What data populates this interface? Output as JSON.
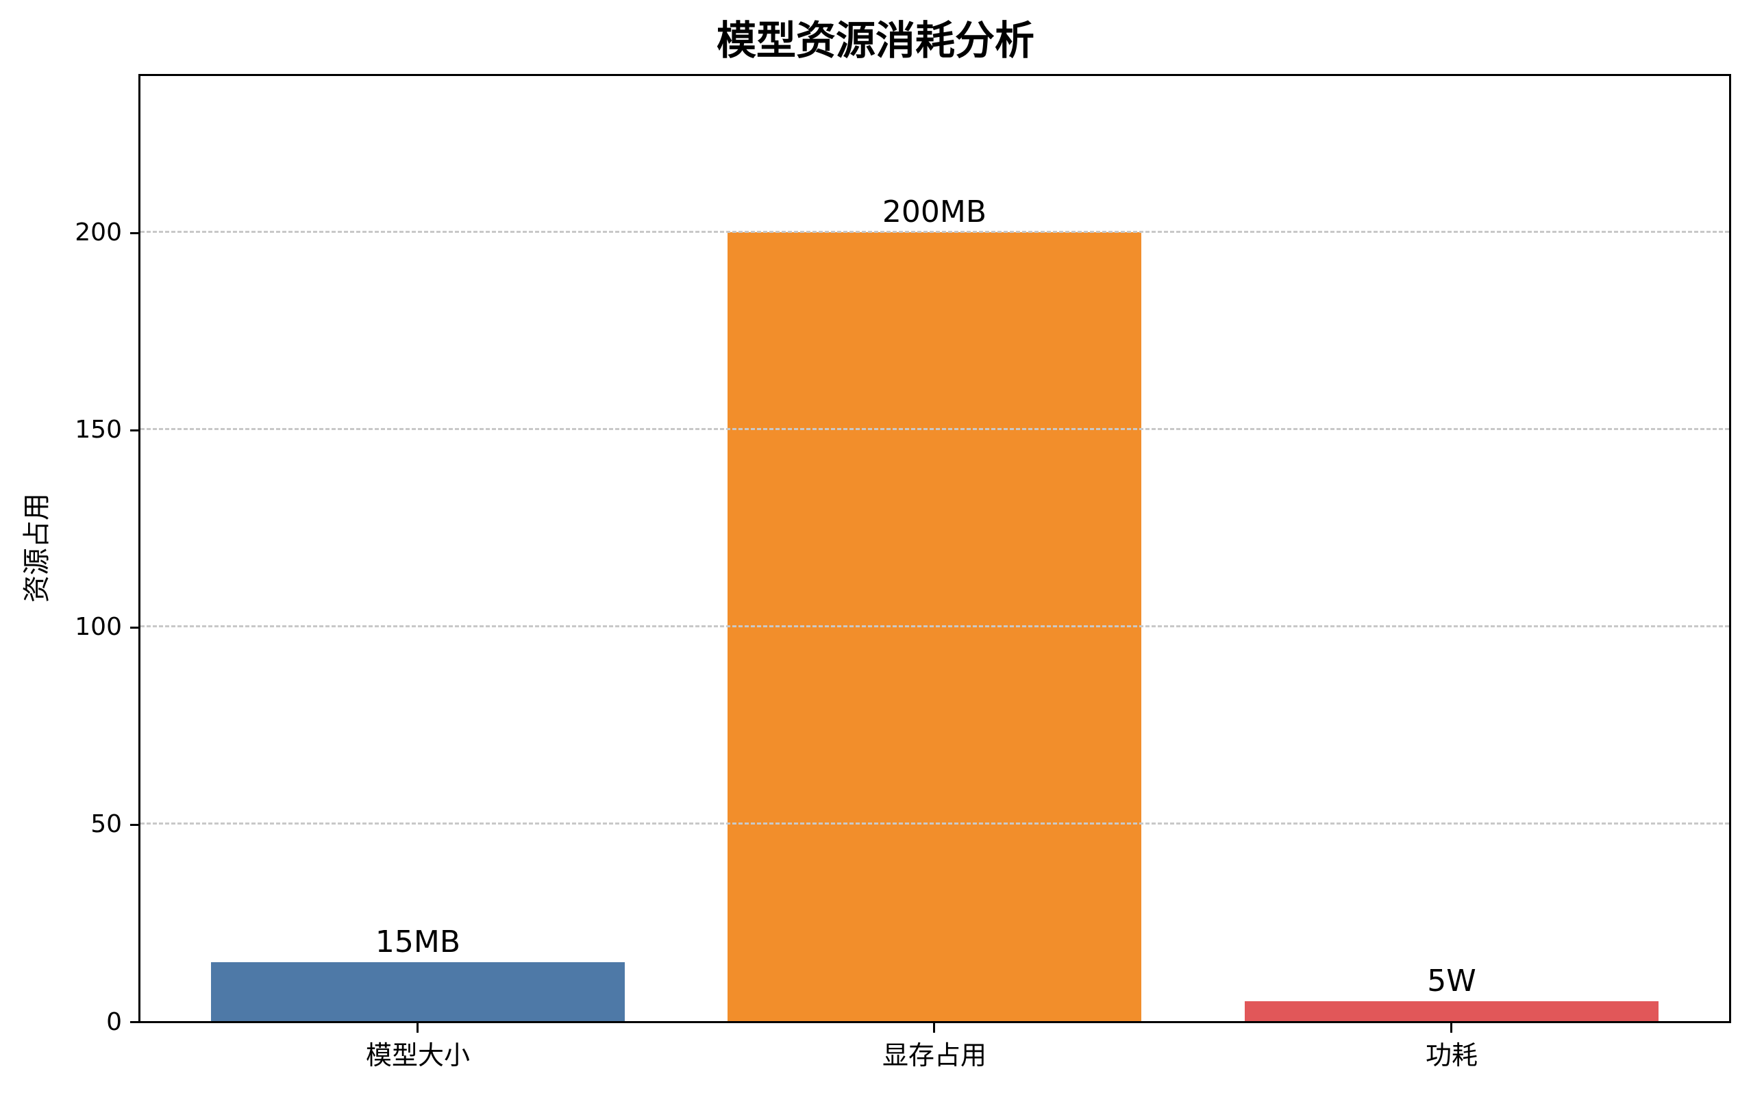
{
  "chart_data": {
    "type": "bar",
    "title": "模型资源消耗分析",
    "xlabel": "",
    "ylabel": "资源占用",
    "categories": [
      "模型大小",
      "显存占用",
      "功耗"
    ],
    "values": [
      15,
      200,
      5
    ],
    "bar_labels": [
      "15MB",
      "200MB",
      "5W"
    ],
    "colors": [
      "#4e79a7",
      "#f28e2b",
      "#e15759"
    ],
    "ylim": [
      0,
      240
    ],
    "yticks": [
      "0",
      "50",
      "100",
      "150",
      "200"
    ],
    "grid": {
      "axis": "y",
      "style": "dashed",
      "color": "#c8c8c8"
    },
    "legend": null
  }
}
